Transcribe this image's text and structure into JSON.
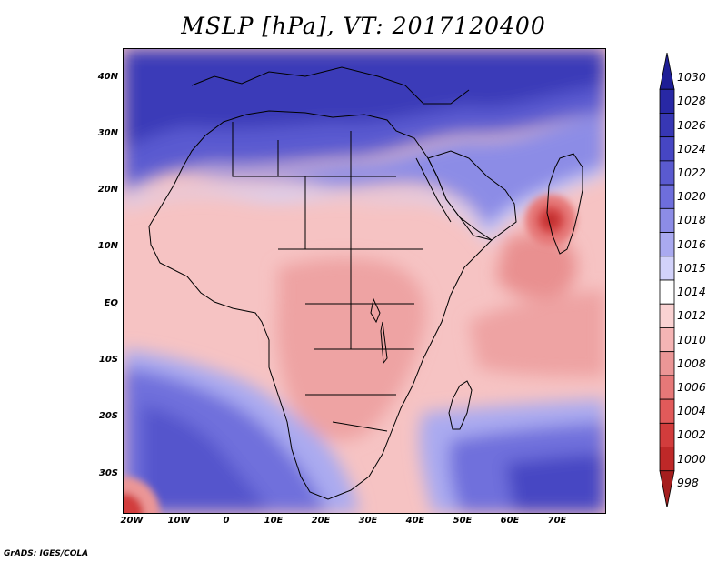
{
  "title": "MSLP [hPa], VT: 2017120400",
  "credit": "GrADS: IGES/COLA",
  "lat_labels": [
    "40N",
    "30N",
    "20N",
    "10N",
    "EQ",
    "10S",
    "20S",
    "30S"
  ],
  "lon_labels": [
    "20W",
    "10W",
    "0",
    "10E",
    "20E",
    "30E",
    "40E",
    "50E",
    "60E",
    "70E"
  ],
  "colorbar": {
    "levels": [
      "1030",
      "1028",
      "1026",
      "1024",
      "1022",
      "1020",
      "1018",
      "1016",
      "1015",
      "1014",
      "1012",
      "1010",
      "1008",
      "1006",
      "1004",
      "1002",
      "1000",
      "998"
    ],
    "colors": [
      "#1e1e96",
      "#2828a5",
      "#3737b4",
      "#4646c3",
      "#5a5ad0",
      "#6e6edc",
      "#8c8ce6",
      "#aaaaf0",
      "#d2d2fa",
      "#ffffff",
      "#fad2d2",
      "#f5b4b4",
      "#eb9696",
      "#e67878",
      "#e15a5a",
      "#d23c3c",
      "#be2828",
      "#a51e1e"
    ]
  },
  "map": {
    "domain": "Africa",
    "lon_range": [
      -22,
      80
    ],
    "lat_range": [
      -36,
      45
    ],
    "features": {
      "arabian_sea_low_center": "1004-1006 near 15N 68E",
      "south_atlantic_low": "1004 near 35S 20W"
    }
  }
}
